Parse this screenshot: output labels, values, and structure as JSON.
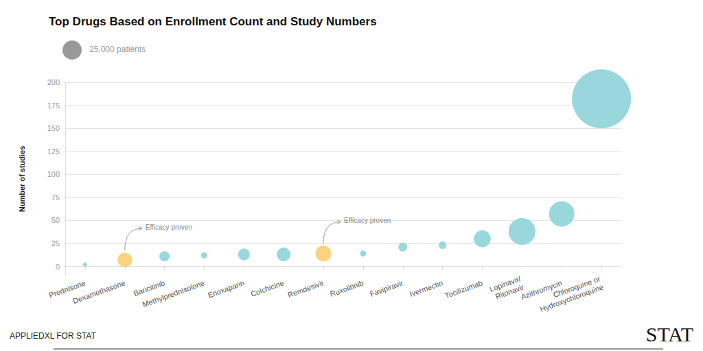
{
  "chart_data": {
    "type": "bubble",
    "title": "Top Drugs Based on Enrollment Count and Study Numbers",
    "y_label": "Number of studies",
    "source": "APPLIEDXL FOR STAT",
    "logo": "STAT",
    "categories": [
      "Prednisone",
      "Dexamethasone",
      "Baricitinib",
      "Methylprednisolone",
      "Enoxaparin",
      "Colchicine",
      "Remdesivir",
      "Ruxolitinib",
      "Favipiravir",
      "Ivermectin",
      "Tocilizumab",
      "Lopinavir/\nRitonavir",
      "Azithromycin",
      "Chloroquine or\nHydroxychloroquine"
    ],
    "values": [
      2,
      7,
      11,
      12,
      13,
      13,
      14,
      14,
      21,
      23,
      30,
      38,
      57,
      182
    ],
    "sizes": [
      800,
      12800,
      6250,
      2000,
      8200,
      11500,
      15400,
      2000,
      4600,
      3200,
      18000,
      46000,
      41000,
      230000
    ],
    "colors": [
      "#8dd4d9",
      "#f9cd72",
      "#8dd4d9",
      "#8dd4d9",
      "#8dd4d9",
      "#8dd4d9",
      "#f9cd72",
      "#8dd4d9",
      "#8dd4d9",
      "#8dd4d9",
      "#8dd4d9",
      "#8dd4d9",
      "#8dd4d9",
      "#8dd4d9"
    ],
    "size_legend": {
      "value": 25000,
      "label": "25,000 patients",
      "color": "#999999"
    },
    "annotations": [
      {
        "text": "Efficacy proven",
        "category": "Dexamethasone"
      },
      {
        "text": "Efficacy proven",
        "category": "Remdesivir"
      }
    ],
    "ylim": [
      -10,
      200
    ],
    "yticks": [
      0,
      25,
      50,
      75,
      100,
      125,
      150,
      175,
      200
    ],
    "grid": true
  }
}
